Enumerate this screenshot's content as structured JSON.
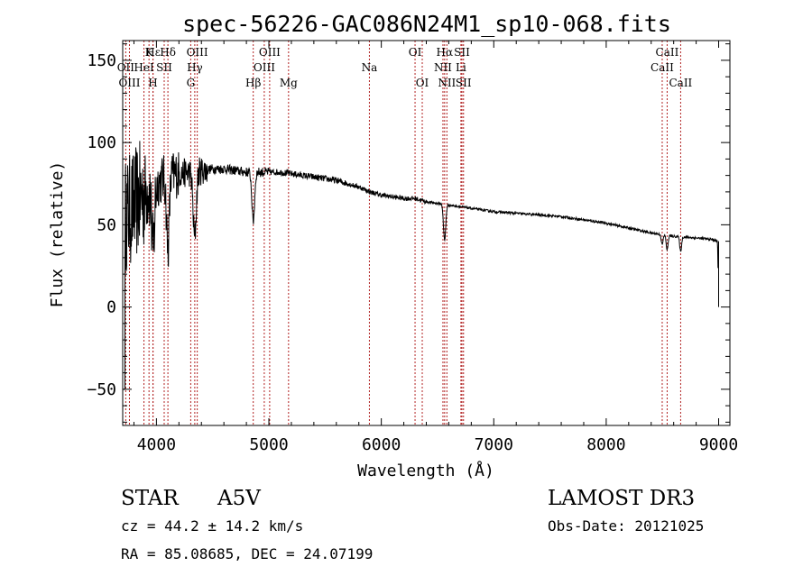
{
  "chart_data": {
    "type": "line",
    "title": "spec-56226-GAC086N24M1_sp10-068.fits",
    "xlabel": "Wavelength (Å)",
    "ylabel": "Flux (relative)",
    "xlim": [
      3700,
      9100
    ],
    "ylim": [
      -72,
      162
    ],
    "xticks": [
      4000,
      5000,
      6000,
      7000,
      8000,
      9000
    ],
    "xtick_labels": [
      "4000",
      "5000",
      "6000",
      "7000",
      "8000",
      "9000"
    ],
    "yticks": [
      -50,
      0,
      50,
      100,
      150
    ],
    "ytick_labels": [
      "−50",
      "0",
      "50",
      "100",
      "150"
    ],
    "continuum": [
      [
        3720,
        55
      ],
      [
        3800,
        62
      ],
      [
        3900,
        70
      ],
      [
        4000,
        75
      ],
      [
        4100,
        80
      ],
      [
        4200,
        81
      ],
      [
        4300,
        82
      ],
      [
        4400,
        83
      ],
      [
        4500,
        84
      ],
      [
        4600,
        84
      ],
      [
        4700,
        83
      ],
      [
        4800,
        82
      ],
      [
        4900,
        82
      ],
      [
        5000,
        82
      ],
      [
        5100,
        82
      ],
      [
        5200,
        81
      ],
      [
        5300,
        80
      ],
      [
        5400,
        79
      ],
      [
        5500,
        78
      ],
      [
        5600,
        77
      ],
      [
        5700,
        75
      ],
      [
        5800,
        73
      ],
      [
        5900,
        70
      ],
      [
        6000,
        68
      ],
      [
        6100,
        67
      ],
      [
        6200,
        66
      ],
      [
        6300,
        66
      ],
      [
        6400,
        64
      ],
      [
        6500,
        63
      ],
      [
        6600,
        62
      ],
      [
        6700,
        61
      ],
      [
        6800,
        60
      ],
      [
        7000,
        58
      ],
      [
        7200,
        57
      ],
      [
        7400,
        56
      ],
      [
        7600,
        55
      ],
      [
        7800,
        53
      ],
      [
        8000,
        51
      ],
      [
        8200,
        48
      ],
      [
        8400,
        45
      ],
      [
        8600,
        43
      ],
      [
        8800,
        42
      ],
      [
        8950,
        41
      ],
      [
        8990,
        40
      ],
      [
        9000,
        0
      ]
    ],
    "absorption": [
      {
        "center": 3970,
        "depth": 40,
        "width": 12
      },
      {
        "center": 4102,
        "depth": 45,
        "width": 12
      },
      {
        "center": 4340,
        "depth": 40,
        "width": 14
      },
      {
        "center": 4861,
        "depth": 30,
        "width": 12
      },
      {
        "center": 6563,
        "depth": 22,
        "width": 10
      },
      {
        "center": 8498,
        "depth": 6,
        "width": 8
      },
      {
        "center": 8542,
        "depth": 9,
        "width": 8
      },
      {
        "center": 8662,
        "depth": 9,
        "width": 8
      }
    ],
    "noise_model": "high noise below 4000 Å (amplitude ~60), decreasing to ~10 near 4400 Å and ~1.5 beyond 6500 Å",
    "lines": [
      {
        "label": "Hε",
        "wavelength": 3970,
        "row": 1
      },
      {
        "label": "OII",
        "wavelength": 3727,
        "row": 2
      },
      {
        "label": "OIII",
        "wavelength": 3760,
        "row": 3
      },
      {
        "label": "K",
        "wavelength": 3934,
        "row": 1
      },
      {
        "label": "HeI",
        "wavelength": 3889,
        "row": 2
      },
      {
        "label": "H",
        "wavelength": 3969,
        "row": 3
      },
      {
        "label": "Hδ",
        "wavelength": 4102,
        "row": 1
      },
      {
        "label": "SII",
        "wavelength": 4069,
        "row": 2
      },
      {
        "label": "OIII",
        "wavelength": 4363,
        "row": 1
      },
      {
        "label": "Hγ",
        "wavelength": 4341,
        "row": 2
      },
      {
        "label": "G",
        "wavelength": 4305,
        "row": 3
      },
      {
        "label": "OIII",
        "wavelength": 5007,
        "row": 1
      },
      {
        "label": "OIII",
        "wavelength": 4959,
        "row": 2
      },
      {
        "label": "Hβ",
        "wavelength": 4861,
        "row": 3
      },
      {
        "label": "Mg",
        "wavelength": 5175,
        "row": 3
      },
      {
        "label": "Na",
        "wavelength": 5894,
        "row": 2
      },
      {
        "label": "OI",
        "wavelength": 6300,
        "row": 1
      },
      {
        "label": "OI",
        "wavelength": 6364,
        "row": 3
      },
      {
        "label": "Hα",
        "wavelength": 6563,
        "row": 1
      },
      {
        "label": "NII",
        "wavelength": 6548,
        "row": 2
      },
      {
        "label": "NII",
        "wavelength": 6583,
        "row": 3
      },
      {
        "label": "SII",
        "wavelength": 6717,
        "row": 1
      },
      {
        "label": "Li",
        "wavelength": 6708,
        "row": 2
      },
      {
        "label": "SII",
        "wavelength": 6731,
        "row": 3
      },
      {
        "label": "CaII",
        "wavelength": 8542,
        "row": 1
      },
      {
        "label": "CaII",
        "wavelength": 8498,
        "row": 2
      },
      {
        "label": "CaII",
        "wavelength": 8662,
        "row": 3
      }
    ],
    "line_marker_color": "#b22222"
  },
  "info": {
    "object_class": "STAR",
    "subclass": "A5V",
    "survey": "LAMOST DR3",
    "redshift": "cz = 44.2 ± 14.2 km/s",
    "obs_date": "Obs-Date: 20121025",
    "coords": "RA =  85.08685, DEC =  24.07199"
  }
}
